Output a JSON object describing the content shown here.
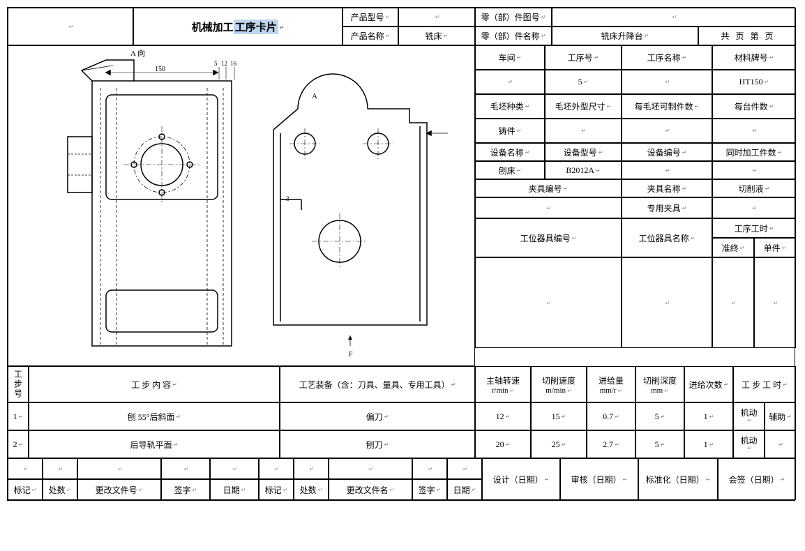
{
  "header": {
    "title": "机械加工",
    "title_hl": "工序卡片",
    "product_model": "产品型号",
    "product_name": "产品名称",
    "product_name_val": "铣床",
    "part_drawing_no": "零（部）件图号",
    "part_name": "零（部）件名称",
    "part_name_val": "铣床升降台",
    "total": "共",
    "page": "页",
    "no": "第",
    "page2": "页"
  },
  "info": {
    "workshop": "车间",
    "process_no": "工序号",
    "process_no_val": "5",
    "process_name": "工序名称",
    "material": "材料牌号",
    "material_val": "HT150",
    "blank_type": "毛坯种类",
    "blank_size": "毛坯外型尺寸",
    "blanks_per": "每毛坯可制件数",
    "per_unit": "每台件数",
    "casting": "铸件",
    "equip_name": "设备名称",
    "equip_model": "设备型号",
    "equip_no": "设备编号",
    "simul": "同时加工件数",
    "planer": "刨床",
    "equip_model_val": "B2012A",
    "fixture_no": "夹具编号",
    "fixture_name": "夹具名称",
    "coolant": "切削液",
    "special_fixture": "专用夹具",
    "station_tool_no": "工位器具编号",
    "station_tool_name": "工位器具名称",
    "process_time": "工序工时",
    "setup": "准终",
    "unit": "单件"
  },
  "steps_header": {
    "step_no": "工步号",
    "step_content": "工    步    内    容",
    "tooling": "工艺装备（含：刀具、量具、专用工具）",
    "spindle": "主轴转速",
    "spindle_unit": "r/min",
    "cut_speed": "切削速度",
    "cut_speed_unit": "m/min",
    "feed": "进给量",
    "feed_unit": "mm/r",
    "cut_depth": "切削深度",
    "cut_depth_unit": "mm",
    "feed_count": "进给次数",
    "step_time": "工 步 工 时"
  },
  "steps": [
    {
      "no": "1",
      "content": "刨 55°后斜面",
      "tooling": "偏刀",
      "spindle": "12",
      "speed": "15",
      "feed": "0.7",
      "depth": "5",
      "count": "1",
      "machine": "机动",
      "aux": "辅助"
    },
    {
      "no": "2",
      "content": "后导轨平面",
      "tooling": "刨刀",
      "spindle": "20",
      "speed": "25",
      "feed": "2.7",
      "depth": "5",
      "count": "1",
      "machine": "机动",
      "aux": ""
    }
  ],
  "footer": {
    "design": "设计（日期）",
    "review": "审核（日期）",
    "standard": "标准化（日期）",
    "countersign": "会签（日期）",
    "mark": "标记",
    "count": "处数",
    "change_file": "更改文件号",
    "sign": "签字",
    "date": "日期",
    "change_file2": "更改文件名"
  },
  "drawing": {
    "label_a": "A 向",
    "label_a2": "A",
    "label_f": "F",
    "dim_150": "150",
    "dim_5": "5",
    "dim_12": "12",
    "dim_16": "16",
    "dim_3": "3"
  },
  "colors": {
    "border": "#000000",
    "highlight": "#bcd5f0",
    "text": "#000000",
    "bg": "#ffffff"
  }
}
